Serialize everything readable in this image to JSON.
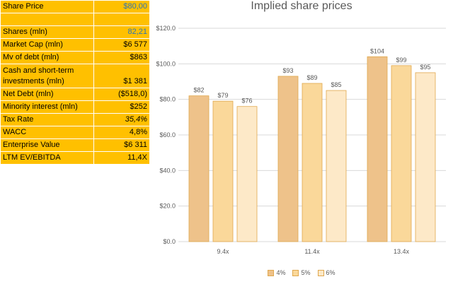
{
  "table": {
    "rows": [
      {
        "label": "Share Price",
        "value": "$80,00",
        "style": "blue"
      },
      {
        "label": "",
        "value": ""
      },
      {
        "label": "Shares  (mln)",
        "value": "82,21",
        "style": "blue"
      },
      {
        "label": "Market Cap (mln)",
        "value": "$6 577"
      },
      {
        "label": "Mv of debt (mln)",
        "value": "$863"
      },
      {
        "label": "Cash and short-term investments (mln)",
        "value": "$1 381",
        "tall": true
      },
      {
        "label": "Net Debt (mln)",
        "value": "($518,0)"
      },
      {
        "label": "Minority interest (mln)",
        "value": "$252"
      },
      {
        "label": "Tax Rate",
        "value": "35,4%",
        "style": "italic"
      },
      {
        "label": "WACC",
        "value": "4,8%"
      },
      {
        "label": "Enterprise Value",
        "value": "$6 311"
      },
      {
        "label": "LTM EV/EBITDA",
        "value": "11,4X"
      }
    ]
  },
  "chart_data": {
    "type": "bar",
    "title": "Implied share prices",
    "categories": [
      "9.4x",
      "11.4x",
      "13.4x"
    ],
    "series": [
      {
        "name": "4%",
        "values": [
          82,
          93,
          104
        ],
        "labels": [
          "$82",
          "$93",
          "$104"
        ],
        "color": "#eec28a"
      },
      {
        "name": "5%",
        "values": [
          79,
          89,
          99
        ],
        "labels": [
          "$79",
          "$89",
          "$99"
        ],
        "color": "#fad89a"
      },
      {
        "name": "6%",
        "values": [
          76,
          85,
          95
        ],
        "labels": [
          "$76",
          "$85",
          "$95"
        ],
        "color": "#fde9c8"
      }
    ],
    "ylim": [
      0,
      120
    ],
    "yticks": [
      "$0.0",
      "$20.0",
      "$40.0",
      "$60.0",
      "$80.0",
      "$100.0",
      "$120.0"
    ],
    "ytick_values": [
      0,
      20,
      40,
      60,
      80,
      100,
      120
    ],
    "grid": true,
    "legend": "bottom",
    "bar_stroke": "#e0a84e",
    "grid_color": "#d9d9d9",
    "text_color": "#595959"
  }
}
